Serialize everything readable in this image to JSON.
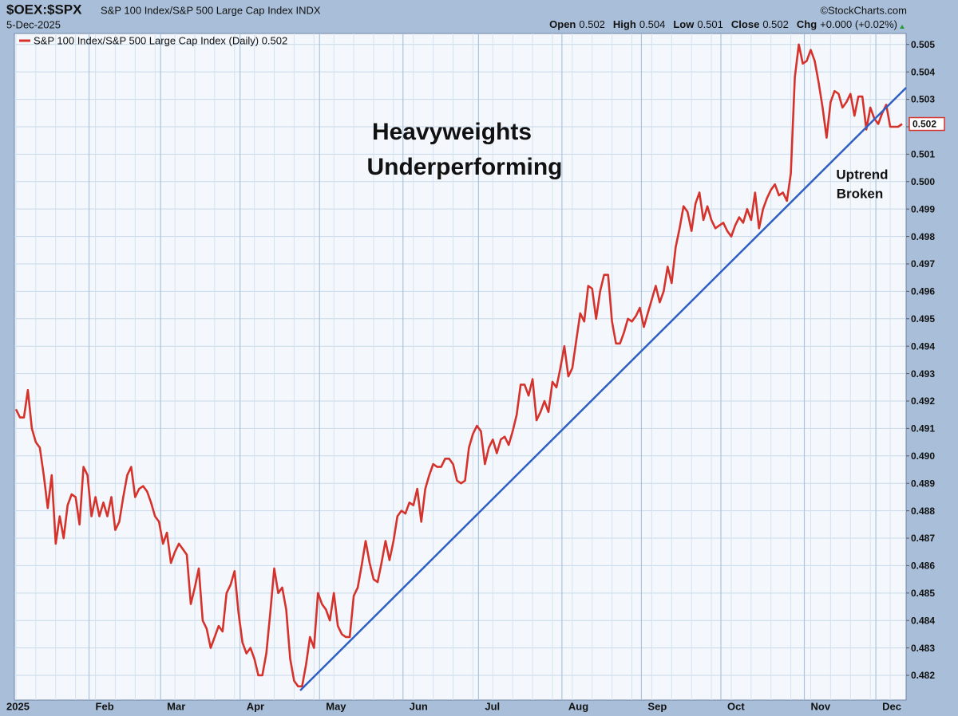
{
  "header": {
    "symbol": "$OEX:$SPX",
    "description": "S&P 100 Index/S&P 500 Large Cap Index INDX",
    "date": "5-Dec-2025",
    "source": "©StockCharts.com",
    "quote": [
      {
        "label": "Open",
        "value": "0.502"
      },
      {
        "label": "High",
        "value": "0.504"
      },
      {
        "label": "Low",
        "value": "0.501"
      },
      {
        "label": "Close",
        "value": "0.502"
      },
      {
        "label": "Chg",
        "value": "+0.000 (+0.02%)"
      }
    ]
  },
  "chart_data": {
    "type": "line",
    "annotations": [
      [
        "Heavyweights",
        "Underperforming"
      ],
      [
        "Uptrend",
        "Broken"
      ]
    ],
    "categories": [
      "2025",
      null,
      null,
      null,
      null,
      null,
      null,
      null,
      null,
      null,
      null,
      null,
      null,
      null,
      null,
      null,
      null,
      null,
      null,
      null,
      "Feb",
      null,
      null,
      null,
      null,
      null,
      null,
      null,
      null,
      null,
      null,
      null,
      null,
      null,
      null,
      null,
      null,
      null,
      "Mar",
      null,
      null,
      null,
      null,
      null,
      null,
      null,
      null,
      null,
      null,
      null,
      null,
      null,
      null,
      null,
      null,
      null,
      null,
      null,
      "Apr",
      null,
      null,
      null,
      null,
      null,
      null,
      null,
      null,
      null,
      null,
      null,
      null,
      null,
      null,
      null,
      null,
      null,
      null,
      null,
      "May",
      null,
      null,
      null,
      null,
      null,
      null,
      null,
      null,
      null,
      null,
      null,
      null,
      null,
      null,
      null,
      null,
      null,
      null,
      null,
      null,
      "Jun",
      null,
      null,
      null,
      null,
      null,
      null,
      null,
      null,
      null,
      null,
      null,
      null,
      null,
      null,
      null,
      null,
      null,
      null,
      "Jul",
      null,
      null,
      null,
      null,
      null,
      null,
      null,
      null,
      null,
      null,
      null,
      null,
      null,
      null,
      null,
      null,
      null,
      null,
      null,
      null,
      "Aug",
      null,
      null,
      null,
      null,
      null,
      null,
      null,
      null,
      null,
      null,
      null,
      null,
      null,
      null,
      null,
      null,
      null,
      null,
      null,
      "Sep",
      null,
      null,
      null,
      null,
      null,
      null,
      null,
      null,
      null,
      null,
      null,
      null,
      null,
      null,
      null,
      null,
      null,
      null,
      null,
      "Oct",
      null,
      null,
      null,
      null,
      null,
      null,
      null,
      null,
      null,
      null,
      null,
      null,
      null,
      null,
      null,
      null,
      null,
      null,
      null,
      null,
      "Nov",
      null,
      null,
      null,
      null,
      null,
      null,
      null,
      null,
      null,
      null,
      null,
      null,
      null,
      null,
      null,
      null,
      null,
      "Dec",
      null,
      null,
      null,
      null,
      null
    ],
    "series": [
      {
        "name": "S&P 100 Index/S&P 500 Large Cap Index (Daily) 0.502",
        "color": "#d6322c",
        "values": [
          0.4917,
          0.4914,
          0.4914,
          0.4924,
          0.491,
          0.4905,
          0.4903,
          0.4893,
          0.4881,
          0.4893,
          0.4868,
          0.4878,
          0.487,
          0.4882,
          0.4886,
          0.4885,
          0.4875,
          0.4896,
          0.4893,
          0.4878,
          0.4885,
          0.4878,
          0.4883,
          0.4878,
          0.4885,
          0.4873,
          0.4876,
          0.4885,
          0.4893,
          0.4896,
          0.4885,
          0.4888,
          0.4889,
          0.4887,
          0.4883,
          0.4878,
          0.4876,
          0.4868,
          0.4872,
          0.4861,
          0.4865,
          0.4868,
          0.4866,
          0.4864,
          0.4846,
          0.4852,
          0.4859,
          0.484,
          0.4837,
          0.483,
          0.4834,
          0.4838,
          0.4836,
          0.485,
          0.4853,
          0.4858,
          0.4843,
          0.4832,
          0.4828,
          0.483,
          0.4826,
          0.482,
          0.482,
          0.4828,
          0.4843,
          0.4859,
          0.485,
          0.4852,
          0.4844,
          0.4826,
          0.4818,
          0.4816,
          0.4816,
          0.4824,
          0.4834,
          0.483,
          0.485,
          0.4846,
          0.4844,
          0.484,
          0.485,
          0.4838,
          0.4835,
          0.4834,
          0.4834,
          0.4849,
          0.4852,
          0.486,
          0.4869,
          0.4861,
          0.4855,
          0.4854,
          0.4861,
          0.4869,
          0.4862,
          0.4869,
          0.4878,
          0.488,
          0.4879,
          0.4883,
          0.4882,
          0.4888,
          0.4876,
          0.4888,
          0.4893,
          0.4897,
          0.4896,
          0.4896,
          0.4899,
          0.4899,
          0.4897,
          0.4891,
          0.489,
          0.4891,
          0.4903,
          0.4908,
          0.4911,
          0.4909,
          0.4897,
          0.4903,
          0.4906,
          0.4901,
          0.4906,
          0.4907,
          0.4904,
          0.4909,
          0.4915,
          0.4926,
          0.4926,
          0.4922,
          0.4928,
          0.4913,
          0.4916,
          0.492,
          0.4916,
          0.4927,
          0.4925,
          0.4932,
          0.494,
          0.4929,
          0.4932,
          0.4942,
          0.4952,
          0.4949,
          0.4962,
          0.4961,
          0.495,
          0.496,
          0.4966,
          0.4966,
          0.4949,
          0.4941,
          0.4941,
          0.4945,
          0.495,
          0.4949,
          0.4951,
          0.4954,
          0.4947,
          0.4952,
          0.4957,
          0.4962,
          0.4956,
          0.496,
          0.4969,
          0.4963,
          0.4976,
          0.4983,
          0.4991,
          0.4989,
          0.4982,
          0.4992,
          0.4996,
          0.4986,
          0.4991,
          0.4986,
          0.4983,
          0.4984,
          0.4985,
          0.4982,
          0.498,
          0.4984,
          0.4987,
          0.4985,
          0.499,
          0.4986,
          0.4996,
          0.4983,
          0.499,
          0.4994,
          0.4997,
          0.4999,
          0.4995,
          0.4996,
          0.4993,
          0.5003,
          0.5038,
          0.505,
          0.5043,
          0.5044,
          0.5048,
          0.5044,
          0.5036,
          0.5027,
          0.5016,
          0.5029,
          0.5033,
          0.5032,
          0.5027,
          0.5029,
          0.5032,
          0.5024,
          0.5031,
          0.5031,
          0.5019,
          0.5027,
          0.5023,
          0.5021,
          0.5025,
          0.5028,
          0.502,
          0.502,
          0.502,
          0.5021
        ]
      }
    ],
    "ylim": [
      0.4811,
      0.5054
    ],
    "yticks": [
      0.482,
      0.483,
      0.484,
      0.485,
      0.486,
      0.487,
      0.488,
      0.489,
      {
        "value": 0.49,
        "label": "0.490"
      },
      0.491,
      0.492,
      0.493,
      0.494,
      0.495,
      0.496,
      0.497,
      0.498,
      0.499,
      {
        "value": 0.5,
        "label": "0.500"
      },
      0.501,
      0.502,
      0.503,
      0.504,
      0.505
    ],
    "grid": true
  }
}
